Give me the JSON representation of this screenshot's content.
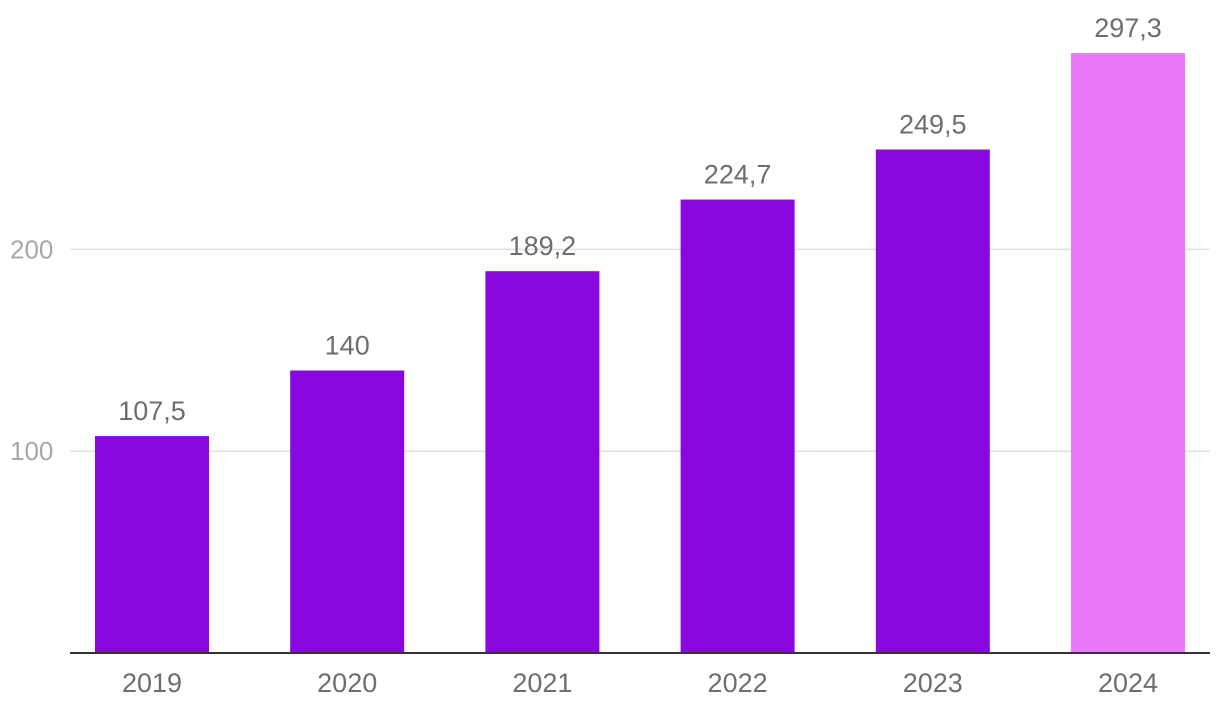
{
  "chart_data": {
    "type": "bar",
    "categories": [
      "2019",
      "2020",
      "2021",
      "2022",
      "2023",
      "2024"
    ],
    "values": [
      107.5,
      140,
      189.2,
      224.7,
      249.5,
      297.3
    ],
    "value_labels": [
      "107,5",
      "140",
      "189,2",
      "224,7",
      "249,5",
      "297,3"
    ],
    "yticks": [
      100,
      200
    ],
    "ylim": [
      0,
      300
    ],
    "grid": true,
    "bar_colors": [
      "#8a08e0",
      "#8a08e0",
      "#8a08e0",
      "#8a08e0",
      "#8a08e0",
      "#eb78fb"
    ],
    "title": "",
    "xlabel": "",
    "ylabel": ""
  }
}
